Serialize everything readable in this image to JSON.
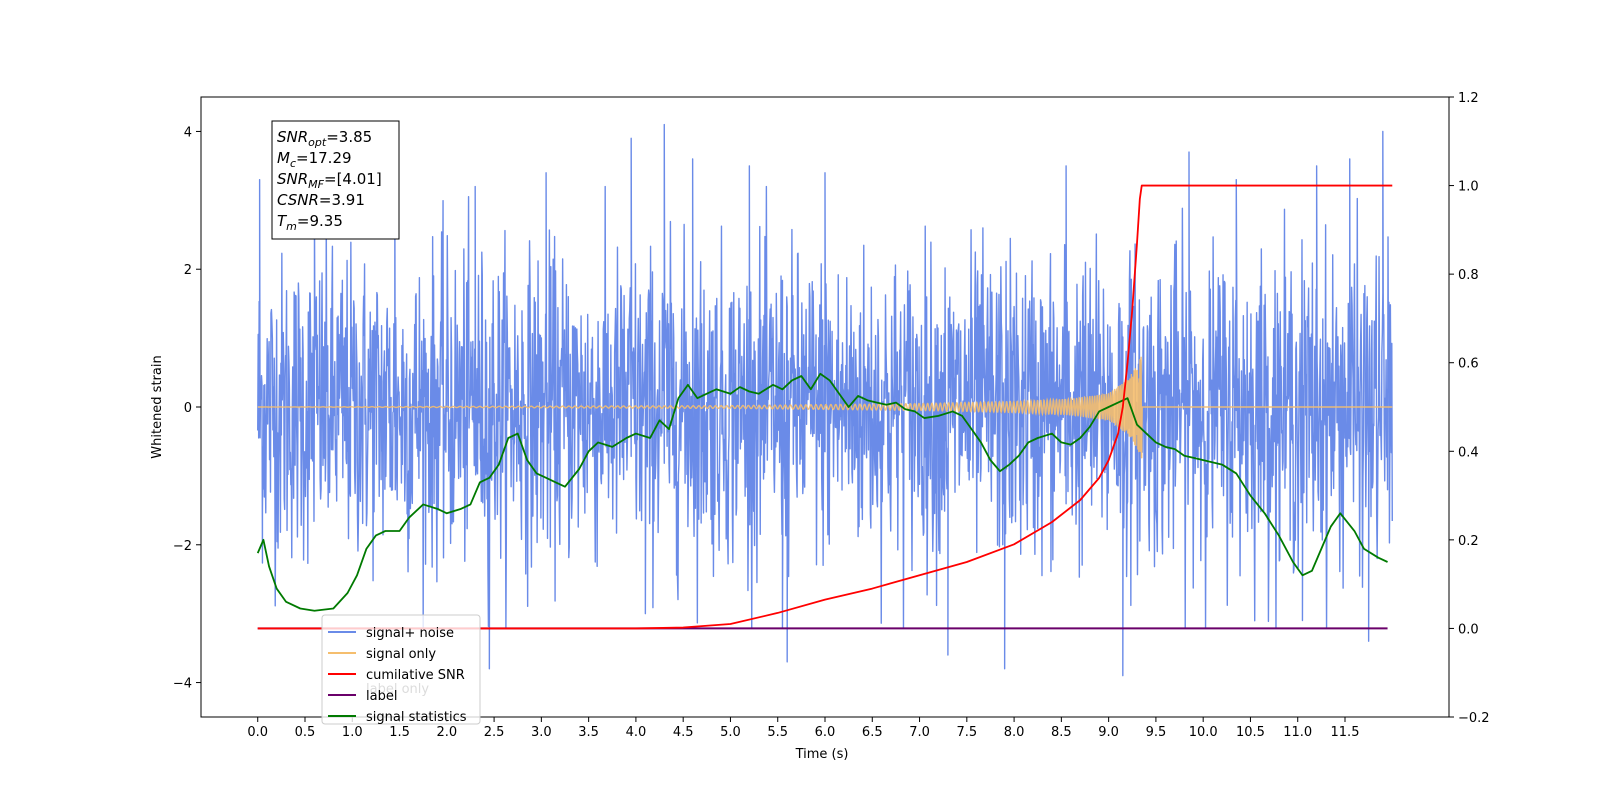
{
  "chart_data": {
    "type": "line",
    "xlabel": "Time (s)",
    "ylabel": "Whitened strain",
    "xlim": [
      -0.6,
      12.6
    ],
    "ylim_left": [
      -4.5,
      4.5
    ],
    "ylim_right": [
      -0.2,
      1.2
    ],
    "x_ticks": [
      0.0,
      0.5,
      1.0,
      1.5,
      2.0,
      2.5,
      3.0,
      3.5,
      4.0,
      4.5,
      5.0,
      5.5,
      6.0,
      6.5,
      7.0,
      7.5,
      8.0,
      8.5,
      9.0,
      9.5,
      10.0,
      10.5,
      11.0,
      11.5
    ],
    "x_tick_labels": [
      "0.0",
      "0.5",
      "1.0",
      "1.5",
      "2.0",
      "2.5",
      "3.0",
      "3.5",
      "4.0",
      "4.5",
      "5.0",
      "5.5",
      "6.0",
      "6.5",
      "7.0",
      "7.5",
      "8.0",
      "8.5",
      "9.0",
      "9.5",
      "10.0",
      "10.5",
      "11.0",
      "11.5"
    ],
    "y_ticks_left": [
      -4,
      -2,
      0,
      2,
      4
    ],
    "y_tick_labels_left": [
      "−4",
      "−2",
      "0",
      "2",
      "4"
    ],
    "y_ticks_right": [
      -0.2,
      0.0,
      0.2,
      0.4,
      0.6,
      0.8,
      1.0,
      1.2
    ],
    "y_tick_labels_right": [
      "−0.2",
      "0.0",
      "0.2",
      "0.4",
      "0.6",
      "0.8",
      "1.0",
      "1.2"
    ],
    "annotation": {
      "lines": [
        {
          "sym": "SNR",
          "sub": "opt",
          "val": "=3.85"
        },
        {
          "sym": "M",
          "sub": "c",
          "val": "=17.29"
        },
        {
          "sym": "SNR",
          "sub": "MF",
          "val": "=[4.01]"
        },
        {
          "sym": "CSNR",
          "sub": "",
          "val": "=3.91"
        },
        {
          "sym": "T",
          "sub": "m",
          "val": "=9.35"
        }
      ]
    },
    "legend": {
      "position": "lower-left",
      "entries": [
        {
          "label": "signal+ noise",
          "color": "#6a8be8"
        },
        {
          "label": "signal only",
          "color": "#f5be6e"
        },
        {
          "label": "cumilative SNR",
          "color": "#ff0000"
        },
        {
          "label": "label",
          "color": "#6a006a"
        },
        {
          "label": "signal statistics",
          "color": "#007a00"
        }
      ],
      "hidden_text": "label only"
    },
    "series": [
      {
        "name": "signal+ noise",
        "axis": "left",
        "color": "#6a8be8",
        "x_range": [
          0.0,
          12.0
        ],
        "noise_sigma": 1.1,
        "spikes": [
          [
            0.02,
            3.3
          ],
          [
            0.05,
            -1.5
          ],
          [
            0.6,
            3.0
          ],
          [
            1.45,
            3.6
          ],
          [
            2.3,
            3.2
          ],
          [
            2.45,
            -3.8
          ],
          [
            3.05,
            3.4
          ],
          [
            3.95,
            3.9
          ],
          [
            4.1,
            -3.0
          ],
          [
            4.3,
            4.1
          ],
          [
            4.6,
            3.6
          ],
          [
            5.2,
            3.5
          ],
          [
            5.55,
            -3.2
          ],
          [
            5.6,
            -3.7
          ],
          [
            6.0,
            3.4
          ],
          [
            7.3,
            -3.6
          ],
          [
            7.9,
            -3.8
          ],
          [
            8.55,
            3.5
          ],
          [
            9.15,
            -3.9
          ],
          [
            9.85,
            3.7
          ],
          [
            10.35,
            3.3
          ],
          [
            11.05,
            -3.1
          ],
          [
            11.2,
            3.5
          ],
          [
            11.55,
            3.6
          ],
          [
            11.75,
            -3.4
          ],
          [
            11.9,
            4.0
          ]
        ]
      },
      {
        "name": "signal only",
        "axis": "left",
        "color": "#f5be6e",
        "chirp_amp": [
          [
            0.0,
            0.0
          ],
          [
            5.0,
            0.02
          ],
          [
            7.0,
            0.05
          ],
          [
            8.0,
            0.08
          ],
          [
            8.6,
            0.12
          ],
          [
            9.0,
            0.2
          ],
          [
            9.2,
            0.4
          ],
          [
            9.3,
            0.6
          ],
          [
            9.35,
            0.75
          ]
        ],
        "merger_time": 9.35
      },
      {
        "name": "cumilative SNR",
        "axis": "right",
        "color": "#ff0000",
        "x": [
          0.0,
          3.5,
          4.0,
          4.5,
          5.0,
          5.5,
          6.0,
          6.5,
          7.0,
          7.5,
          8.0,
          8.4,
          8.7,
          8.9,
          9.0,
          9.1,
          9.15,
          9.2,
          9.25,
          9.3,
          9.33,
          9.35,
          12.0
        ],
        "y": [
          0.0,
          0.0,
          0.0,
          0.002,
          0.01,
          0.035,
          0.065,
          0.09,
          0.12,
          0.15,
          0.19,
          0.24,
          0.29,
          0.34,
          0.38,
          0.44,
          0.5,
          0.6,
          0.72,
          0.87,
          0.97,
          1.0,
          1.0
        ]
      },
      {
        "name": "label",
        "axis": "right",
        "color": "#6a006a",
        "x": [
          0.0,
          11.95
        ],
        "y": [
          0.0,
          0.0
        ]
      },
      {
        "name": "signal statistics",
        "axis": "right",
        "color": "#007a00",
        "x": [
          0.0,
          0.06,
          0.12,
          0.2,
          0.3,
          0.45,
          0.6,
          0.8,
          0.95,
          1.05,
          1.15,
          1.25,
          1.35,
          1.5,
          1.6,
          1.75,
          1.9,
          2.0,
          2.15,
          2.25,
          2.35,
          2.45,
          2.55,
          2.65,
          2.75,
          2.85,
          2.95,
          3.05,
          3.15,
          3.25,
          3.4,
          3.5,
          3.6,
          3.75,
          3.9,
          4.0,
          4.15,
          4.25,
          4.35,
          4.45,
          4.55,
          4.65,
          4.75,
          4.85,
          5.0,
          5.1,
          5.2,
          5.3,
          5.45,
          5.55,
          5.65,
          5.75,
          5.85,
          5.95,
          6.05,
          6.15,
          6.25,
          6.35,
          6.45,
          6.55,
          6.65,
          6.75,
          6.85,
          6.95,
          7.05,
          7.2,
          7.35,
          7.45,
          7.55,
          7.65,
          7.75,
          7.85,
          7.95,
          8.05,
          8.15,
          8.25,
          8.4,
          8.5,
          8.6,
          8.7,
          8.8,
          8.9,
          9.0,
          9.1,
          9.2,
          9.3,
          9.4,
          9.5,
          9.6,
          9.7,
          9.8,
          9.9,
          10.0,
          10.1,
          10.2,
          10.35,
          10.5,
          10.65,
          10.8,
          10.95,
          11.05,
          11.15,
          11.25,
          11.35,
          11.45,
          11.6,
          11.7,
          11.85,
          11.95
        ],
        "y": [
          0.17,
          0.2,
          0.14,
          0.09,
          0.06,
          0.045,
          0.04,
          0.045,
          0.08,
          0.12,
          0.18,
          0.21,
          0.22,
          0.22,
          0.25,
          0.28,
          0.27,
          0.26,
          0.27,
          0.28,
          0.33,
          0.34,
          0.37,
          0.43,
          0.44,
          0.38,
          0.35,
          0.34,
          0.33,
          0.32,
          0.36,
          0.4,
          0.42,
          0.41,
          0.43,
          0.44,
          0.43,
          0.47,
          0.45,
          0.52,
          0.55,
          0.52,
          0.53,
          0.54,
          0.53,
          0.545,
          0.535,
          0.53,
          0.55,
          0.54,
          0.56,
          0.57,
          0.54,
          0.575,
          0.56,
          0.53,
          0.5,
          0.525,
          0.515,
          0.51,
          0.505,
          0.51,
          0.495,
          0.49,
          0.475,
          0.48,
          0.49,
          0.48,
          0.45,
          0.42,
          0.38,
          0.355,
          0.37,
          0.39,
          0.42,
          0.43,
          0.44,
          0.42,
          0.415,
          0.43,
          0.455,
          0.49,
          0.5,
          0.51,
          0.52,
          0.46,
          0.44,
          0.42,
          0.41,
          0.405,
          0.39,
          0.385,
          0.38,
          0.375,
          0.37,
          0.35,
          0.3,
          0.26,
          0.21,
          0.15,
          0.12,
          0.13,
          0.18,
          0.23,
          0.26,
          0.22,
          0.18,
          0.16,
          0.15
        ]
      }
    ]
  }
}
